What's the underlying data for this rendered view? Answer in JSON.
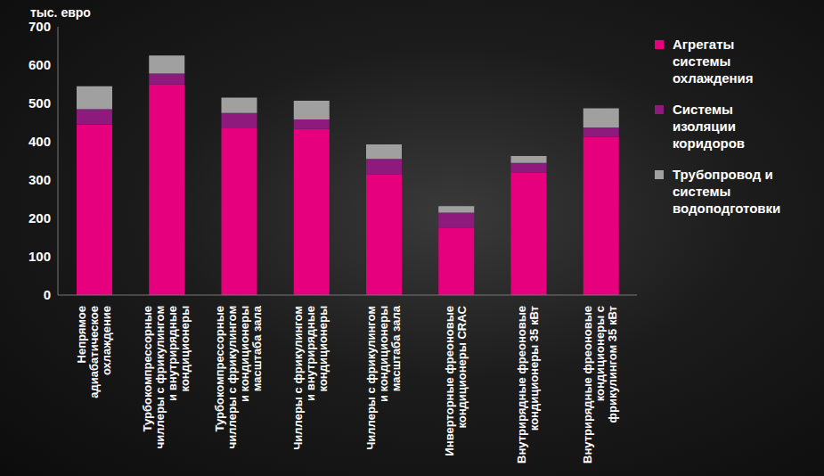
{
  "chart_data": {
    "type": "bar",
    "stacked": true,
    "y_label": "тыс. евро",
    "categories": [
      "Непрямое адиабатическое охлаждение",
      "Турбокомпрессорные чиллеры с фрикулингом и внутрирядные кондиционеры",
      "Турбокомпрессорные чиллеры с фрикулингом и кондиционеры масштаба зала",
      "Чиллеры с фрикулингом и внутрирядные кондиционеры",
      "Чиллеры с фрикулингом и кондиционеры масштаба зала",
      "Инверторные фреоновые кондиционеры CRAC",
      "Внутрирядные фреоновые кондиционеры 35 кВт",
      "Внутрирядные фреоновые кондиционеры с фрикулингом 35 кВт"
    ],
    "series": [
      {
        "name": "Агрегаты системы охлаждения",
        "color": "#e6007e",
        "values": [
          445,
          550,
          435,
          433,
          315,
          175,
          320,
          412
        ]
      },
      {
        "name": "Системы изоляции коридоров",
        "color": "#8e1a7d",
        "values": [
          40,
          28,
          40,
          25,
          40,
          40,
          25,
          25
        ]
      },
      {
        "name": "Трубопровод и системы водоподготовки",
        "color": "#a0a0a0",
        "values": [
          60,
          47,
          40,
          49,
          38,
          17,
          18,
          50
        ]
      }
    ],
    "ylim": [
      0,
      700
    ],
    "yticks": [
      0,
      100,
      200,
      300,
      400,
      500,
      600,
      700
    ],
    "grid": false,
    "legend": "right"
  }
}
